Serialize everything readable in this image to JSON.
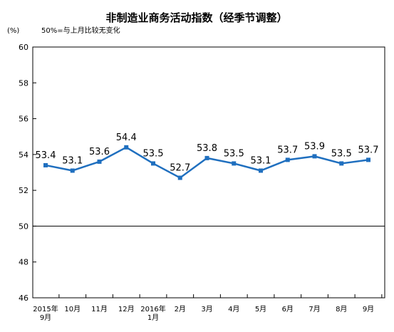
{
  "chart_data": {
    "type": "line",
    "title": "非制造业商务活动指数（经季节调整）",
    "unit_label": "(%)",
    "note": "50%=与上月比较无变化",
    "categories": [
      [
        "2015年",
        "9月"
      ],
      [
        "10月"
      ],
      [
        "11月"
      ],
      [
        "12月"
      ],
      [
        "2016年",
        "1月"
      ],
      [
        "2月"
      ],
      [
        "3月"
      ],
      [
        "4月"
      ],
      [
        "5月"
      ],
      [
        "6月"
      ],
      [
        "7月"
      ],
      [
        "8月"
      ],
      [
        "9月"
      ]
    ],
    "values": [
      53.4,
      53.1,
      53.6,
      54.4,
      53.5,
      52.7,
      53.8,
      53.5,
      53.1,
      53.7,
      53.9,
      53.5,
      53.7
    ],
    "value_labels": [
      "53.4",
      "53.1",
      "53.6",
      "54.4",
      "53.5",
      "52.7",
      "53.8",
      "53.5",
      "53.1",
      "53.7",
      "53.9",
      "53.5",
      "53.7"
    ],
    "ylim": [
      46,
      60
    ],
    "yticks": [
      46,
      48,
      50,
      52,
      54,
      56,
      58,
      60
    ],
    "reference_line": 50,
    "series_color": "#1f6fbf",
    "grid": false,
    "legend": "none"
  }
}
